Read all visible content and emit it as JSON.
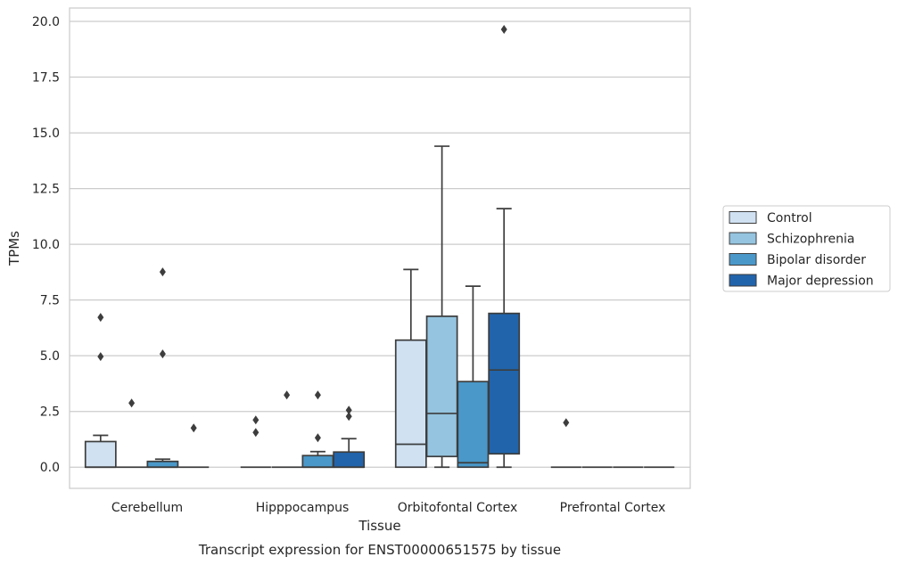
{
  "chart_data": {
    "type": "box",
    "caption": "Transcript expression for ENST00000651575 by tissue",
    "xlabel": "Tissue",
    "ylabel": "TPMs",
    "ylim": [
      -0.95,
      20.6
    ],
    "yticks": [
      0.0,
      2.5,
      5.0,
      7.5,
      10.0,
      12.5,
      15.0,
      17.5,
      20.0
    ],
    "ytick_labels": [
      "0.0",
      "2.5",
      "5.0",
      "7.5",
      "10.0",
      "12.5",
      "15.0",
      "17.5",
      "20.0"
    ],
    "grid": true,
    "legend_position": "right",
    "categories": [
      "Cerebellum",
      "Hipppocampus",
      "Orbitofontal Cortex",
      "Prefrontal Cortex"
    ],
    "series": [
      {
        "name": "Control",
        "color": "#d0e1f2",
        "boxes": [
          {
            "min": 0.0,
            "q1": 0.0,
            "median": 0.0,
            "q3": 1.15,
            "max": 1.43,
            "outliers": [
              6.72,
              4.96
            ]
          },
          {
            "min": 0.0,
            "q1": 0.0,
            "median": 0.0,
            "q3": 0.0,
            "max": 0.0,
            "outliers": [
              2.12,
              1.56
            ]
          },
          {
            "min": 0.0,
            "q1": 0.0,
            "median": 1.03,
            "q3": 5.7,
            "max": 8.87,
            "outliers": []
          },
          {
            "min": 0.0,
            "q1": 0.0,
            "median": 0.0,
            "q3": 0.0,
            "max": 0.0,
            "outliers": [
              2.0
            ]
          }
        ]
      },
      {
        "name": "Schizophrenia",
        "color": "#94c4df",
        "boxes": [
          {
            "min": 0.0,
            "q1": 0.0,
            "median": 0.0,
            "q3": 0.0,
            "max": 0.0,
            "outliers": [
              2.88
            ]
          },
          {
            "min": 0.0,
            "q1": 0.0,
            "median": 0.0,
            "q3": 0.0,
            "max": 0.0,
            "outliers": [
              3.24
            ]
          },
          {
            "min": 0.0,
            "q1": 0.48,
            "median": 2.41,
            "q3": 6.77,
            "max": 14.4,
            "outliers": []
          },
          {
            "min": 0.0,
            "q1": 0.0,
            "median": 0.0,
            "q3": 0.0,
            "max": 0.0,
            "outliers": []
          }
        ]
      },
      {
        "name": "Bipolar disorder",
        "color": "#4a98c9",
        "boxes": [
          {
            "min": 0.0,
            "q1": 0.0,
            "median": 0.0,
            "q3": 0.26,
            "max": 0.36,
            "outliers": [
              8.76,
              5.08
            ]
          },
          {
            "min": 0.0,
            "q1": 0.0,
            "median": 0.0,
            "q3": 0.52,
            "max": 0.7,
            "outliers": [
              3.24,
              1.32
            ]
          },
          {
            "min": 0.0,
            "q1": 0.0,
            "median": 0.2,
            "q3": 3.84,
            "max": 8.12,
            "outliers": []
          },
          {
            "min": 0.0,
            "q1": 0.0,
            "median": 0.0,
            "q3": 0.0,
            "max": 0.0,
            "outliers": []
          }
        ]
      },
      {
        "name": "Major depression",
        "color": "#2164ab",
        "boxes": [
          {
            "min": 0.0,
            "q1": 0.0,
            "median": 0.0,
            "q3": 0.0,
            "max": 0.0,
            "outliers": [
              1.76
            ]
          },
          {
            "min": 0.0,
            "q1": 0.0,
            "median": 0.0,
            "q3": 0.68,
            "max": 1.28,
            "outliers": [
              2.56,
              2.28
            ]
          },
          {
            "min": 0.0,
            "q1": 0.6,
            "median": 4.36,
            "q3": 6.9,
            "max": 11.6,
            "outliers": [
              19.64
            ]
          },
          {
            "min": 0.0,
            "q1": 0.0,
            "median": 0.0,
            "q3": 0.0,
            "max": 0.0,
            "outliers": []
          }
        ]
      }
    ]
  }
}
